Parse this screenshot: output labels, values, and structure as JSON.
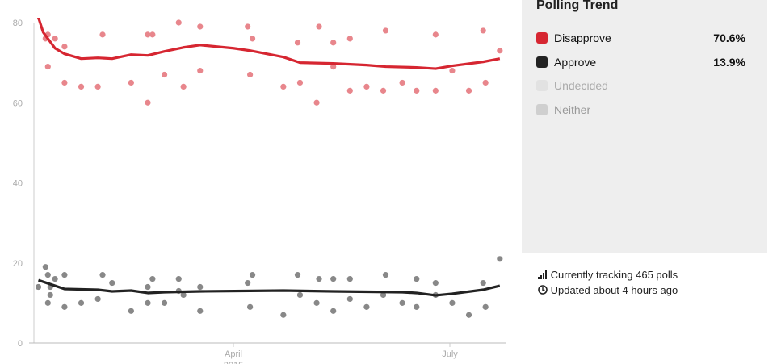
{
  "chart_data": {
    "type": "scatter",
    "title": "Polling Trend",
    "x_unit": "day of year",
    "xlim": [
      7,
      205
    ],
    "ylim": [
      0,
      80
    ],
    "yticks": [
      0,
      20,
      40,
      60,
      80
    ],
    "xticks": [
      {
        "day": 91,
        "label": "April",
        "sublabel": "2015"
      },
      {
        "day": 182,
        "label": "July"
      }
    ],
    "series": [
      {
        "name": "Disapprove",
        "color": "#d62631",
        "dot_color": "#e8868c",
        "points": [
          [
            12,
            76
          ],
          [
            13,
            77
          ],
          [
            13,
            69
          ],
          [
            16,
            76
          ],
          [
            20,
            74
          ],
          [
            20,
            65
          ],
          [
            27,
            64
          ],
          [
            34,
            64
          ],
          [
            36,
            77
          ],
          [
            48,
            65
          ],
          [
            55,
            77
          ],
          [
            55,
            60
          ],
          [
            57,
            77
          ],
          [
            62,
            67
          ],
          [
            68,
            80
          ],
          [
            70,
            64
          ],
          [
            77,
            68
          ],
          [
            77,
            79
          ],
          [
            97,
            79
          ],
          [
            98,
            67
          ],
          [
            99,
            76
          ],
          [
            112,
            64
          ],
          [
            118,
            75
          ],
          [
            119,
            65
          ],
          [
            126,
            60
          ],
          [
            127,
            79
          ],
          [
            133,
            75
          ],
          [
            133,
            69
          ],
          [
            140,
            76
          ],
          [
            140,
            63
          ],
          [
            147,
            64
          ],
          [
            154,
            63
          ],
          [
            155,
            78
          ],
          [
            162,
            65
          ],
          [
            168,
            63
          ],
          [
            176,
            77
          ],
          [
            176,
            63
          ],
          [
            183,
            68
          ],
          [
            190,
            63
          ],
          [
            196,
            78
          ],
          [
            197,
            65
          ],
          [
            203,
            73
          ]
        ],
        "trend": [
          [
            7,
            85
          ],
          [
            11,
            77.6
          ],
          [
            16,
            73.6
          ],
          [
            20,
            72.2
          ],
          [
            27,
            71
          ],
          [
            34,
            71.2
          ],
          [
            40,
            71
          ],
          [
            48,
            72
          ],
          [
            55,
            71.8
          ],
          [
            62,
            72.8
          ],
          [
            70,
            73.8
          ],
          [
            77,
            74.4
          ],
          [
            91,
            73.6
          ],
          [
            98,
            73
          ],
          [
            112,
            71.4
          ],
          [
            119,
            70
          ],
          [
            133,
            69.8
          ],
          [
            147,
            69.4
          ],
          [
            155,
            69
          ],
          [
            168,
            68.8
          ],
          [
            176,
            68.5
          ],
          [
            183,
            69.2
          ],
          [
            196,
            70.2
          ],
          [
            203,
            71
          ]
        ]
      },
      {
        "name": "Approve",
        "color": "#222222",
        "dot_color": "#888888",
        "points": [
          [
            9,
            14
          ],
          [
            12,
            19
          ],
          [
            13,
            17
          ],
          [
            13,
            10
          ],
          [
            14,
            12
          ],
          [
            14,
            14
          ],
          [
            16,
            16
          ],
          [
            20,
            17
          ],
          [
            20,
            9
          ],
          [
            27,
            10
          ],
          [
            34,
            11
          ],
          [
            36,
            17
          ],
          [
            40,
            15
          ],
          [
            48,
            8
          ],
          [
            55,
            14
          ],
          [
            55,
            10
          ],
          [
            57,
            16
          ],
          [
            62,
            10
          ],
          [
            68,
            16
          ],
          [
            68,
            13
          ],
          [
            70,
            12
          ],
          [
            77,
            8
          ],
          [
            77,
            14
          ],
          [
            97,
            15
          ],
          [
            98,
            9
          ],
          [
            99,
            17
          ],
          [
            112,
            7
          ],
          [
            118,
            17
          ],
          [
            119,
            12
          ],
          [
            126,
            10
          ],
          [
            127,
            16
          ],
          [
            133,
            8
          ],
          [
            133,
            16
          ],
          [
            140,
            11
          ],
          [
            140,
            16
          ],
          [
            147,
            9
          ],
          [
            154,
            12
          ],
          [
            155,
            17
          ],
          [
            162,
            10
          ],
          [
            168,
            16
          ],
          [
            168,
            9
          ],
          [
            176,
            12
          ],
          [
            176,
            15
          ],
          [
            183,
            10
          ],
          [
            190,
            7
          ],
          [
            196,
            15
          ],
          [
            197,
            9
          ],
          [
            203,
            21
          ]
        ],
        "trend": [
          [
            9,
            15.7
          ],
          [
            13,
            14.9
          ],
          [
            20,
            13.5
          ],
          [
            34,
            13.3
          ],
          [
            40,
            12.9
          ],
          [
            48,
            13.1
          ],
          [
            55,
            12.5
          ],
          [
            62,
            12.7
          ],
          [
            77,
            12.9
          ],
          [
            112,
            13.1
          ],
          [
            133,
            12.9
          ],
          [
            162,
            12.7
          ],
          [
            168,
            12.5
          ],
          [
            176,
            11.9
          ],
          [
            183,
            12.3
          ],
          [
            196,
            13.3
          ],
          [
            203,
            14.3
          ]
        ]
      }
    ]
  },
  "legend": {
    "title": "Polling Trend",
    "items": [
      {
        "label": "Disapprove",
        "value": "70.6%",
        "color": "#d62631",
        "label_color": "#111"
      },
      {
        "label": "Approve",
        "value": "13.9%",
        "color": "#222222",
        "label_color": "#111"
      },
      {
        "label": "Undecided",
        "value": "",
        "color": "#e2e2e2",
        "label_color": "#aaa"
      },
      {
        "label": "Neither",
        "value": "",
        "color": "#cfcfcf",
        "label_color": "#999"
      }
    ]
  },
  "info": {
    "tracking": "Currently tracking 465 polls",
    "updated": "Updated about 4 hours ago",
    "tracking_icon": "signal-bars-icon",
    "updated_icon": "clock-icon"
  }
}
